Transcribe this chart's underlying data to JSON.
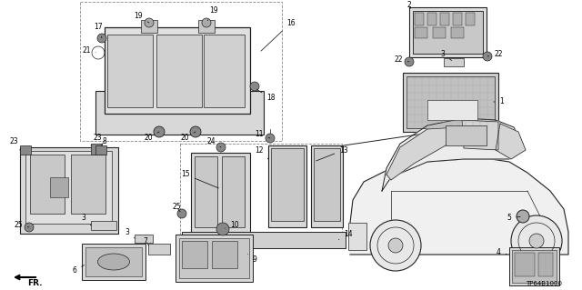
{
  "background_color": "#ffffff",
  "diagram_code": "TP64B1000",
  "figsize": [
    6.4,
    3.19
  ],
  "dpi": 100,
  "line_color": "#222222",
  "fill_light": "#e8e8e8",
  "fill_mid": "#cccccc",
  "fill_dark": "#999999"
}
